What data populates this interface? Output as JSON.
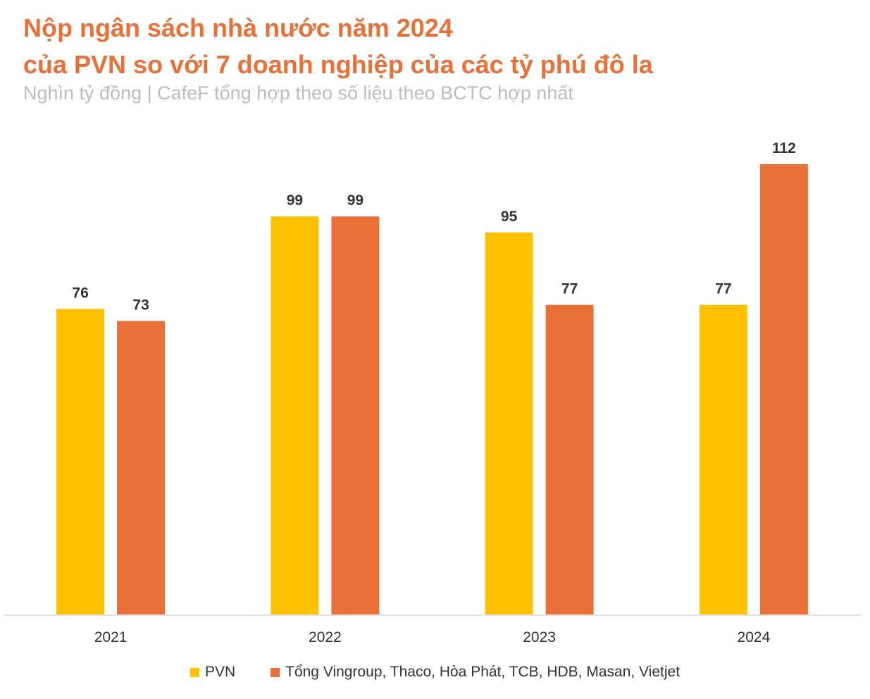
{
  "chart_data": {
    "type": "bar",
    "title_lines": [
      "Nộp ngân sách nhà nước năm 2024",
      "của PVN so với 7 doanh nghiệp của các tỷ phú đô la"
    ],
    "subtitle": "Nghìn tỷ đồng | CafeF tổng hợp theo số liệu theo BCTC hợp nhất",
    "categories": [
      "2021",
      "2022",
      "2023",
      "2024"
    ],
    "series": [
      {
        "name": "PVN",
        "color": "#FFC000",
        "values": [
          76,
          99,
          95,
          77
        ]
      },
      {
        "name": "Tổng Vingroup, Thaco, Hòa Phát, TCB, HDB, Masan, Vietjet",
        "color": "#E8713A",
        "values": [
          73,
          99,
          77,
          112
        ]
      }
    ],
    "ylim": [
      0,
      112
    ],
    "grid": false,
    "legend_position": "bottom-center",
    "data_labels": true
  }
}
